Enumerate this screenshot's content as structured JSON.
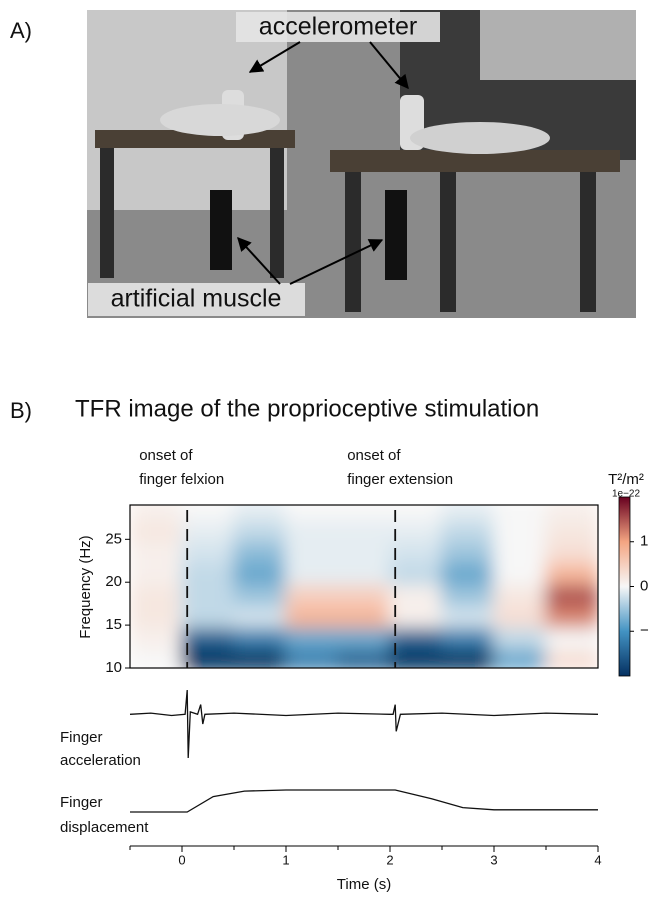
{
  "panel_a": {
    "label": "A)",
    "annotations": [
      "accelerometer",
      "artificial muscle"
    ]
  },
  "panel_b": {
    "label": "B)"
  },
  "chart_data": {
    "type": "heatmap",
    "title": "TFR image of the  proprioceptive stimulation",
    "ylabel": "Frequency (Hz)",
    "xlabel": "Time (s)",
    "xlim": [
      -0.5,
      4
    ],
    "xticks": [
      0,
      1,
      2,
      3,
      4
    ],
    "xminorticks": [
      -0.5,
      0.5,
      1.5,
      2.5,
      3.5
    ],
    "ylim": [
      10,
      29
    ],
    "yticks": [
      10,
      15,
      20,
      25
    ],
    "x": [
      -0.25,
      0.25,
      0.75,
      1.25,
      1.75,
      2.25,
      2.75,
      3.25,
      3.75
    ],
    "y": [
      11,
      13.5,
      16,
      18.5,
      21,
      23.5,
      26,
      28.5
    ],
    "z": [
      [
        0,
        -2,
        -2,
        -1.2,
        -1.5,
        -2,
        -2,
        -0.8,
        0.3
      ],
      [
        0.1,
        -1.5,
        -1.2,
        -0.8,
        -0.8,
        -1.5,
        -1.2,
        -0.3,
        0
      ],
      [
        0.2,
        -0.3,
        -0.2,
        0.8,
        0.8,
        0.1,
        -0.2,
        0.3,
        1.2
      ],
      [
        0.2,
        -0.3,
        -0.5,
        0.5,
        0.5,
        0.1,
        -0.5,
        0.2,
        1.5
      ],
      [
        0.1,
        -0.3,
        -0.8,
        -0.1,
        -0.1,
        -0.3,
        -0.8,
        0,
        0.8
      ],
      [
        0.1,
        -0.2,
        -0.6,
        -0.1,
        -0.1,
        -0.2,
        -0.5,
        0,
        0.3
      ],
      [
        0.2,
        -0.1,
        -0.3,
        -0.1,
        -0.1,
        -0.1,
        -0.3,
        0,
        0.2
      ],
      [
        0.1,
        0,
        -0.1,
        0,
        0,
        0,
        -0.1,
        0,
        0.1
      ]
    ],
    "events": [
      {
        "x": 0.05,
        "label": [
          "onset of",
          "finger felxion"
        ]
      },
      {
        "x": 2.05,
        "label": [
          "onset of",
          "finger extension"
        ]
      }
    ],
    "colorbar": {
      "label": "T²/m²",
      "scale_label": "1e−22",
      "clim": [
        -2,
        2
      ],
      "ticks": [
        1,
        0,
        {
          "value": -1,
          "label": "−"
        }
      ]
    },
    "traces": [
      {
        "name": [
          "Finger",
          "acceleration"
        ],
        "color": "#111111",
        "x": [
          -0.5,
          -0.3,
          -0.1,
          0.03,
          0.05,
          0.06,
          0.08,
          0.15,
          0.18,
          0.2,
          0.22,
          0.5,
          1,
          1.5,
          2,
          2.03,
          2.05,
          2.06,
          2.1,
          2.5,
          3,
          3.5,
          4
        ],
        "values": [
          0,
          0.05,
          -0.05,
          0,
          1,
          -1.8,
          0.1,
          0,
          0.4,
          -0.4,
          0,
          0.05,
          -0.05,
          0.05,
          0,
          0,
          0.4,
          -0.7,
          0,
          0.05,
          -0.05,
          0.05,
          0
        ]
      },
      {
        "name": [
          "Finger",
          "displacement"
        ],
        "color": "#111111",
        "x": [
          -0.5,
          0.05,
          0.3,
          0.6,
          1,
          2,
          2.05,
          2.4,
          2.7,
          3,
          4
        ],
        "values": [
          0,
          0,
          0.7,
          0.95,
          1,
          1,
          1,
          0.6,
          0.2,
          0.1,
          0.1
        ]
      }
    ]
  }
}
